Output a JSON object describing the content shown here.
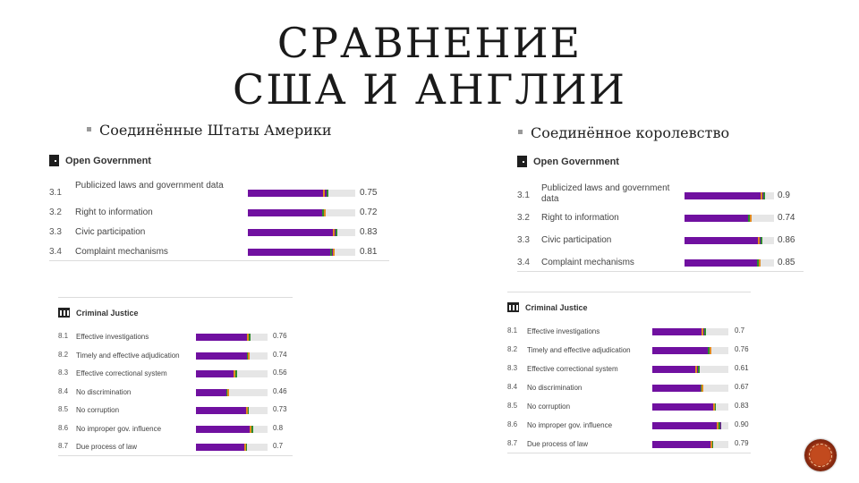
{
  "slide": {
    "title_line1": "СРАВНЕНИЕ",
    "title_line2": "США И АНГЛИИ",
    "usa_label": "Соединённые Штаты Америки",
    "uk_label": "Соединённое королевство"
  },
  "colors": {
    "bar": "#7010a0",
    "track": "#e6e6e6",
    "marker1": "#2e8b2e",
    "marker2": "#e08a1e",
    "marker3": "#3a3aa0"
  },
  "chart_data": [
    {
      "type": "bar",
      "country": "USA",
      "title": "Open Government",
      "icon": "door-icon",
      "codes": [
        "3.1",
        "3.2",
        "3.3",
        "3.4"
      ],
      "categories": [
        "Publicized laws and government data",
        "Right to information",
        "Civic participation",
        "Complaint mechanisms"
      ],
      "values": [
        0.75,
        0.72,
        0.83,
        0.81
      ],
      "value_labels": [
        "0.75",
        "0.72",
        "0.83",
        "0.81"
      ],
      "ylim": [
        0,
        1
      ]
    },
    {
      "type": "bar",
      "country": "UK",
      "title": "Open Government",
      "icon": "door-icon",
      "codes": [
        "3.1",
        "3.2",
        "3.3",
        "3.4"
      ],
      "categories": [
        "Publicized laws and government data",
        "Right to information",
        "Civic participation",
        "Complaint mechanisms"
      ],
      "values": [
        0.9,
        0.74,
        0.86,
        0.85
      ],
      "value_labels": [
        "0.9",
        "0.74",
        "0.86",
        "0.85"
      ],
      "ylim": [
        0,
        1
      ]
    },
    {
      "type": "bar",
      "country": "USA",
      "title": "Criminal Justice",
      "icon": "courthouse-icon",
      "codes": [
        "8.1",
        "8.2",
        "8.3",
        "8.4",
        "8.5",
        "8.6",
        "8.7"
      ],
      "categories": [
        "Effective investigations",
        "Timely and effective adjudication",
        "Effective correctional system",
        "No discrimination",
        "No corruption",
        "No improper gov. influence",
        "Due process of law"
      ],
      "values": [
        0.76,
        0.74,
        0.56,
        0.46,
        0.73,
        0.8,
        0.7
      ],
      "value_labels": [
        "0.76",
        "0.74",
        "0.56",
        "0.46",
        "0.73",
        "0.8",
        "0.7"
      ],
      "ylim": [
        0,
        1
      ]
    },
    {
      "type": "bar",
      "country": "UK",
      "title": "Criminal Justice",
      "icon": "courthouse-icon",
      "codes": [
        "8.1",
        "8.2",
        "8.3",
        "8.4",
        "8.5",
        "8.6",
        "8.7"
      ],
      "categories": [
        "Effective investigations",
        "Timely and effective adjudication",
        "Effective correctional system",
        "No discrimination",
        "No corruption",
        "No improper gov. influence",
        "Due process of law"
      ],
      "values": [
        0.7,
        0.76,
        0.61,
        0.67,
        0.83,
        0.9,
        0.79
      ],
      "value_labels": [
        "0.7",
        "0.76",
        "0.61",
        "0.67",
        "0.83",
        "0.90",
        "0.79"
      ],
      "ylim": [
        0,
        1
      ]
    }
  ]
}
